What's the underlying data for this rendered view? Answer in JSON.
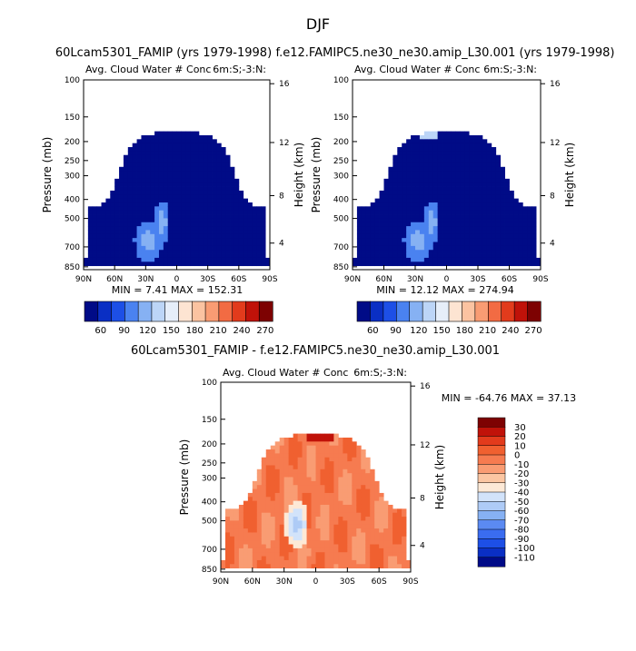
{
  "page_title": "DJF",
  "colors": {
    "blue_scale": [
      "#000b87",
      "#0a2fc4",
      "#1d4fe6",
      "#4a82f0",
      "#86b1f3",
      "#bcd5f7",
      "#e6eef9",
      "#fde4d2",
      "#fbc3a1",
      "#f99c73",
      "#f26b43",
      "#e23b1c",
      "#c01209",
      "#7d0202"
    ],
    "diff_scale": [
      "#000b87",
      "#0a2fc4",
      "#1d4fe6",
      "#3a6cf0",
      "#5b8af2",
      "#86b1f3",
      "#aecbf6",
      "#d2e3fa",
      "#fde9d6",
      "#fbc6a2",
      "#f99c73",
      "#f67b50",
      "#f06030",
      "#e23b1c",
      "#c01209",
      "#7d0202"
    ]
  },
  "chart_data": [
    {
      "type": "heatmap",
      "title": "60Lcam5301_FAMIP (yrs 1979-1998)",
      "subtitle_left": "Avg. Cloud Water # Conc",
      "subtitle_right": "6m:S;-3:N:",
      "ylabel": "Pressure (mb)",
      "ylabel_right": "Height (km)",
      "x_ticks": [
        "90N",
        "60N",
        "30N",
        "0",
        "30S",
        "60S",
        "90S"
      ],
      "y_ticks": [
        "100",
        "150",
        "200",
        "250",
        "300",
        "400",
        "500",
        "700",
        "850"
      ],
      "height_ticks": [
        "4",
        "8",
        "12",
        "16"
      ],
      "stats": "MIN =    7.41   MAX =  152.31",
      "colorbar_labels": [
        "60",
        "90",
        "120",
        "150",
        "180",
        "210",
        "240",
        "270"
      ]
    },
    {
      "type": "heatmap",
      "title": "f.e12.FAMIPC5.ne30_ne30.amip_L30.001 (yrs 1979-1998)",
      "subtitle_left": "Avg. Cloud Water # Conc",
      "subtitle_right": "6m:S;-3:N:",
      "ylabel": "Pressure (mb)",
      "ylabel_right": "Height (km)",
      "x_ticks": [
        "90N",
        "60N",
        "30N",
        "0",
        "30S",
        "60S",
        "90S"
      ],
      "y_ticks": [
        "100",
        "150",
        "200",
        "250",
        "300",
        "400",
        "500",
        "700",
        "850"
      ],
      "height_ticks": [
        "4",
        "8",
        "12",
        "16"
      ],
      "stats": "MIN =   12.12   MAX =  274.94",
      "colorbar_labels": [
        "60",
        "90",
        "120",
        "150",
        "180",
        "210",
        "240",
        "270"
      ]
    },
    {
      "type": "heatmap",
      "title": "60Lcam5301_FAMIP - f.e12.FAMIPC5.ne30_ne30.amip_L30.001",
      "subtitle_left": "Avg. Cloud Water # Conc",
      "subtitle_right": "6m:S;-3:N:",
      "ylabel": "Pressure (mb)",
      "ylabel_right": "Height (km)",
      "x_ticks": [
        "90N",
        "60N",
        "30N",
        "0",
        "30S",
        "60S",
        "90S"
      ],
      "y_ticks": [
        "100",
        "150",
        "200",
        "250",
        "300",
        "400",
        "500",
        "700",
        "850"
      ],
      "height_ticks": [
        "4",
        "8",
        "12",
        "16"
      ],
      "stats": "MIN = -64.76   MAX =  37.13",
      "colorbar_labels": [
        "30",
        "20",
        "10",
        "0",
        "-10",
        "-20",
        "-30",
        "-40",
        "-50",
        "-60",
        "-70",
        "-80",
        "-90",
        "-100",
        "-110"
      ]
    }
  ]
}
